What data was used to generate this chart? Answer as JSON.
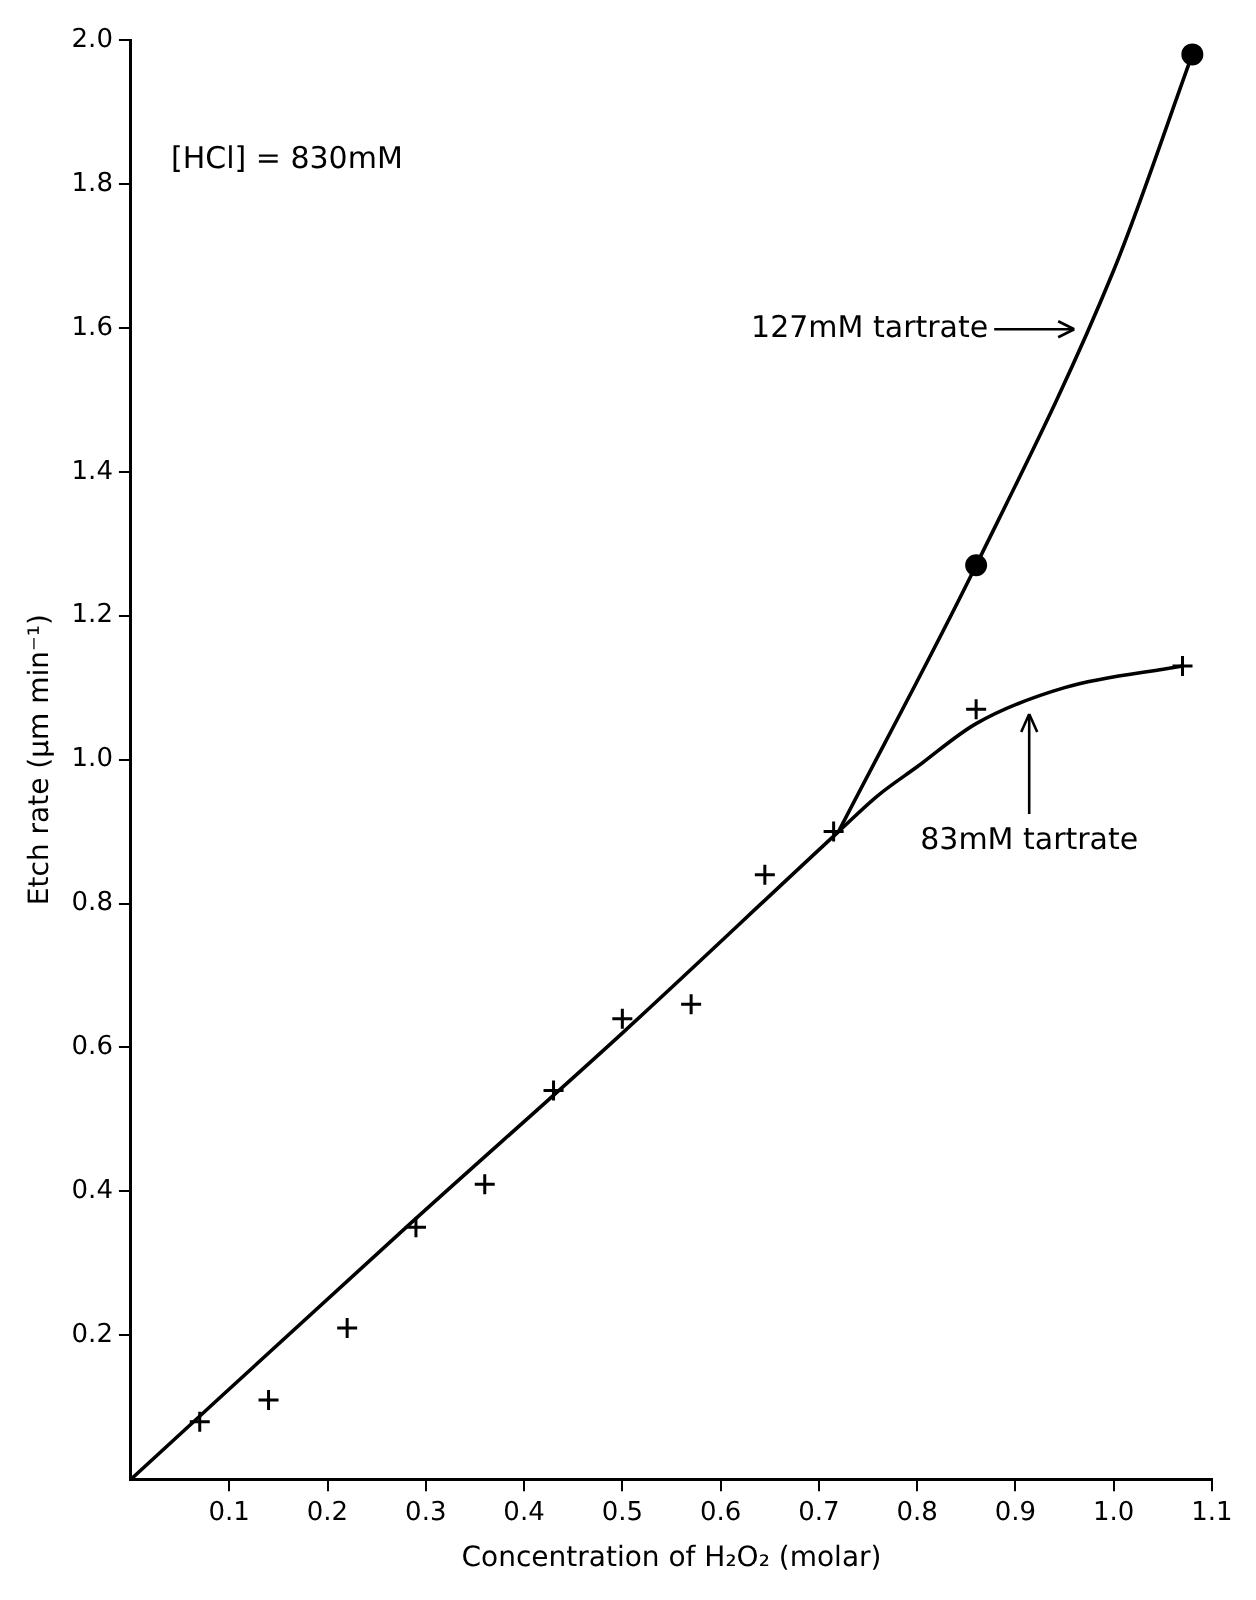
{
  "chart_data": {
    "type": "scatter",
    "xlabel": "Concentration of H₂O₂ (molar)",
    "ylabel": "Etch rate (μm min⁻¹)",
    "xlim": [
      0,
      1.1
    ],
    "ylim": [
      0,
      2.0
    ],
    "xticks": [
      0.1,
      0.2,
      0.3,
      0.4,
      0.5,
      0.6,
      0.7,
      0.8,
      0.9,
      {
        "value": 1,
        "label": "1.0"
      },
      1.1
    ],
    "yticks": [
      0.2,
      0.4,
      0.6,
      0.8,
      {
        "value": 1,
        "label": "1.0"
      },
      1.2,
      1.4,
      1.6,
      1.8,
      {
        "value": 2,
        "label": "2.0"
      }
    ],
    "series": [
      {
        "type": "scatter",
        "marker": "cross",
        "color": "#000000",
        "x": [
          0.07,
          0.14,
          0.22,
          0.29,
          0.36,
          0.43,
          0.5,
          0.57,
          0.645,
          0.715,
          0.86,
          1.07
        ],
        "values": [
          0.08,
          0.11,
          0.21,
          0.35,
          0.41,
          0.54,
          0.64,
          0.66,
          0.84,
          0.9,
          1.07,
          1.13
        ]
      },
      {
        "type": "scatter",
        "marker": "circle",
        "color": "#000000",
        "x": [
          0.86,
          1.08
        ],
        "values": [
          1.27,
          1.98
        ]
      },
      {
        "name": "83mM tartrate",
        "type": "line",
        "marker": "none",
        "color": "#000000",
        "x": [
          0,
          0.28,
          0.5,
          0.72,
          0.76,
          0.8,
          0.86,
          0.95,
          1.07
        ],
        "values": [
          0,
          0.35,
          0.62,
          0.9,
          0.95,
          0.99,
          1.05,
          1.1,
          1.13
        ]
      },
      {
        "name": "127mM tartrate",
        "type": "line",
        "marker": "none",
        "color": "#000000",
        "x": [
          0.72,
          0.86,
          1.0,
          1.08
        ],
        "values": [
          0.9,
          1.27,
          1.68,
          1.98
        ]
      }
    ],
    "annotations": [
      "[HCl] = 830mM"
    ]
  }
}
